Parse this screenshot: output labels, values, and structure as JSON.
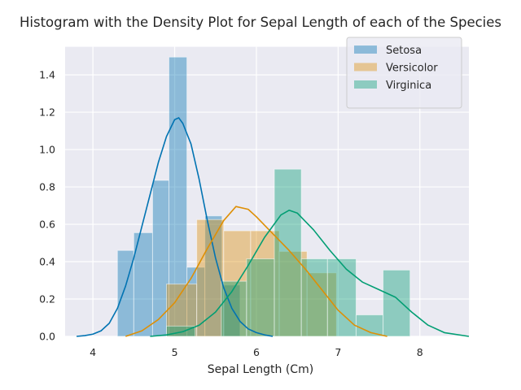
{
  "chart_data": {
    "type": "bar",
    "title": "Histogram with the Density Plot for Sepal Length of each of the Species",
    "xlabel": "Sepal Length (Cm)",
    "ylabel": "",
    "xlim": [
      3.66,
      8.6
    ],
    "ylim": [
      0,
      1.55
    ],
    "xticks": [
      4,
      5,
      6,
      7,
      8
    ],
    "yticks": [
      0.0,
      0.2,
      0.4,
      0.6,
      0.8,
      1.0,
      1.2,
      1.4
    ],
    "grid": true,
    "legend_position": "top-right",
    "series": [
      {
        "name": "Setosa",
        "color": "#0173b2",
        "bins": [
          {
            "x0": 4.3,
            "x1": 4.5,
            "height": 0.46
          },
          {
            "x0": 4.5,
            "x1": 4.73,
            "height": 0.555
          },
          {
            "x0": 4.73,
            "x1": 4.93,
            "height": 0.835
          },
          {
            "x0": 4.93,
            "x1": 5.15,
            "height": 1.495
          },
          {
            "x0": 5.15,
            "x1": 5.37,
            "height": 0.37
          },
          {
            "x0": 5.37,
            "x1": 5.58,
            "height": 0.645
          },
          {
            "x0": 5.58,
            "x1": 5.8,
            "height": 0.275
          }
        ],
        "density": [
          [
            3.8,
            0.0
          ],
          [
            3.9,
            0.004
          ],
          [
            4.0,
            0.012
          ],
          [
            4.1,
            0.03
          ],
          [
            4.2,
            0.07
          ],
          [
            4.3,
            0.15
          ],
          [
            4.4,
            0.27
          ],
          [
            4.5,
            0.42
          ],
          [
            4.6,
            0.59
          ],
          [
            4.7,
            0.76
          ],
          [
            4.8,
            0.93
          ],
          [
            4.9,
            1.07
          ],
          [
            5.0,
            1.16
          ],
          [
            5.05,
            1.17
          ],
          [
            5.1,
            1.14
          ],
          [
            5.2,
            1.03
          ],
          [
            5.3,
            0.84
          ],
          [
            5.4,
            0.62
          ],
          [
            5.5,
            0.42
          ],
          [
            5.6,
            0.26
          ],
          [
            5.7,
            0.15
          ],
          [
            5.8,
            0.08
          ],
          [
            5.9,
            0.04
          ],
          [
            6.0,
            0.02
          ],
          [
            6.1,
            0.008
          ],
          [
            6.2,
            0.0
          ]
        ]
      },
      {
        "name": "Versicolor",
        "color": "#de8f05",
        "bins": [
          {
            "x0": 4.9,
            "x1": 5.27,
            "height": 0.28
          },
          {
            "x0": 5.27,
            "x1": 5.6,
            "height": 0.625
          },
          {
            "x0": 5.6,
            "x1": 5.93,
            "height": 0.565
          },
          {
            "x0": 5.93,
            "x1": 6.28,
            "height": 0.565
          },
          {
            "x0": 6.28,
            "x1": 6.62,
            "height": 0.455
          },
          {
            "x0": 6.62,
            "x1": 6.98,
            "height": 0.34
          }
        ],
        "density": [
          [
            4.4,
            0.0
          ],
          [
            4.6,
            0.03
          ],
          [
            4.8,
            0.09
          ],
          [
            5.0,
            0.18
          ],
          [
            5.2,
            0.31
          ],
          [
            5.4,
            0.47
          ],
          [
            5.6,
            0.62
          ],
          [
            5.75,
            0.695
          ],
          [
            5.9,
            0.68
          ],
          [
            6.0,
            0.64
          ],
          [
            6.2,
            0.55
          ],
          [
            6.4,
            0.46
          ],
          [
            6.6,
            0.36
          ],
          [
            6.8,
            0.25
          ],
          [
            7.0,
            0.14
          ],
          [
            7.2,
            0.06
          ],
          [
            7.4,
            0.02
          ],
          [
            7.6,
            0.0
          ]
        ]
      },
      {
        "name": "Virginica",
        "color": "#029e73",
        "bins": [
          {
            "x0": 4.9,
            "x1": 5.25,
            "height": 0.055
          },
          {
            "x0": 5.25,
            "x1": 5.57,
            "height": 0.0
          },
          {
            "x0": 5.57,
            "x1": 5.88,
            "height": 0.295
          },
          {
            "x0": 5.88,
            "x1": 6.22,
            "height": 0.415
          },
          {
            "x0": 6.22,
            "x1": 6.55,
            "height": 0.895
          },
          {
            "x0": 6.55,
            "x1": 6.87,
            "height": 0.415
          },
          {
            "x0": 6.87,
            "x1": 7.22,
            "height": 0.415
          },
          {
            "x0": 7.22,
            "x1": 7.55,
            "height": 0.115
          },
          {
            "x0": 7.55,
            "x1": 7.88,
            "height": 0.355
          }
        ],
        "density": [
          [
            4.7,
            0.0
          ],
          [
            4.9,
            0.008
          ],
          [
            5.1,
            0.025
          ],
          [
            5.3,
            0.06
          ],
          [
            5.5,
            0.13
          ],
          [
            5.7,
            0.24
          ],
          [
            5.9,
            0.38
          ],
          [
            6.1,
            0.53
          ],
          [
            6.3,
            0.65
          ],
          [
            6.4,
            0.675
          ],
          [
            6.5,
            0.66
          ],
          [
            6.7,
            0.57
          ],
          [
            6.9,
            0.46
          ],
          [
            7.1,
            0.36
          ],
          [
            7.3,
            0.29
          ],
          [
            7.5,
            0.25
          ],
          [
            7.7,
            0.21
          ],
          [
            7.9,
            0.13
          ],
          [
            8.1,
            0.06
          ],
          [
            8.3,
            0.02
          ],
          [
            8.6,
            0.0
          ]
        ]
      }
    ]
  }
}
